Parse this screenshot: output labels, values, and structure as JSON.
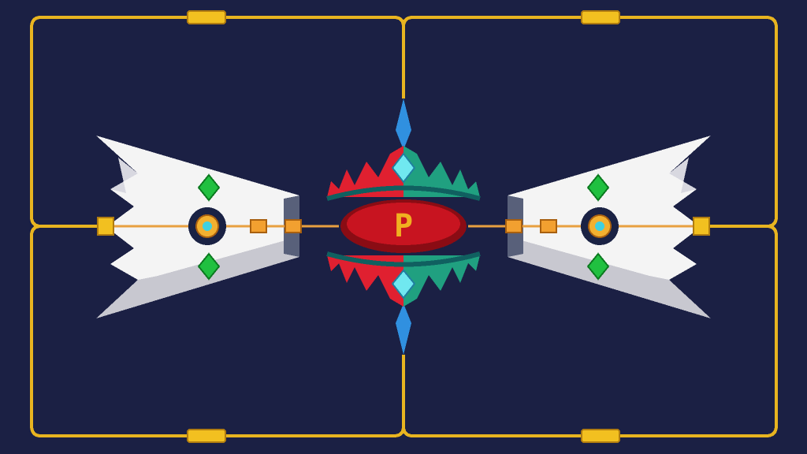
{
  "emblem": {
    "letter": "P"
  }
}
